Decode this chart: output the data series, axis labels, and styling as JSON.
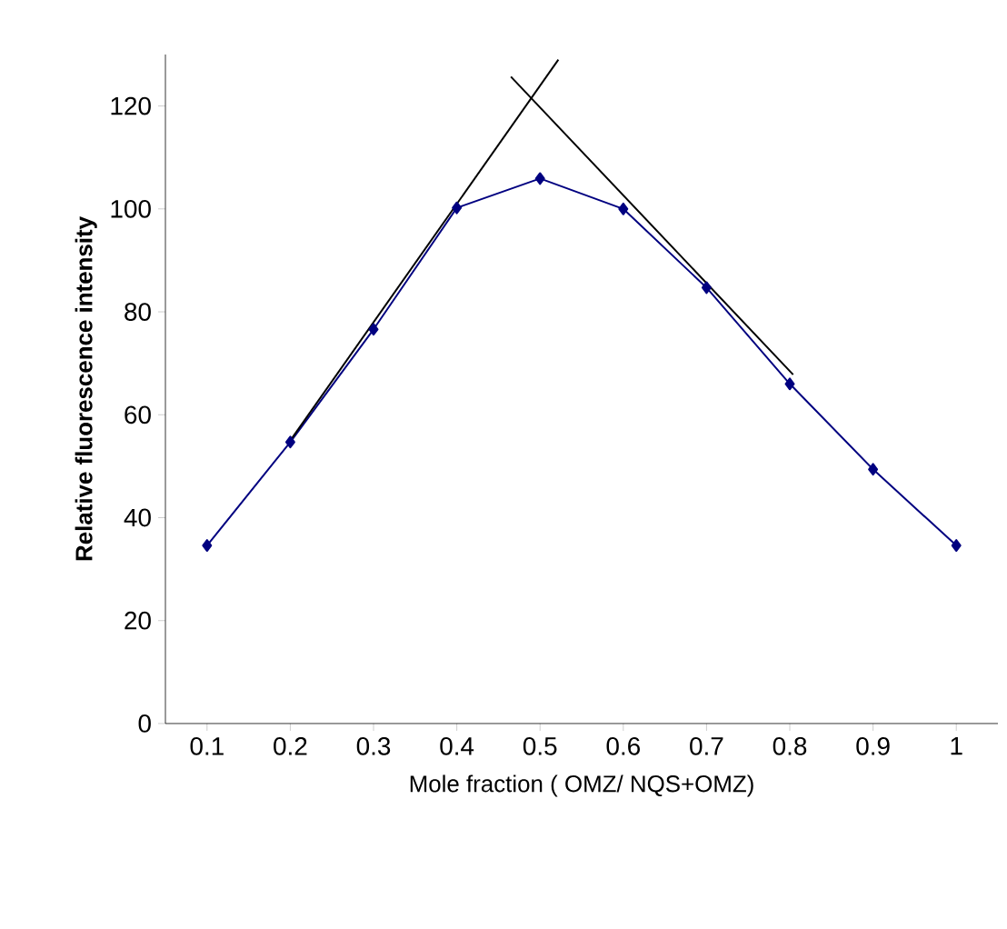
{
  "chart_data": {
    "type": "line",
    "xlabel": "Mole fraction ( OMZ/ NQS+OMZ)",
    "ylabel": "Relative fluorescence intensity",
    "xlim": [
      0.05,
      1.05
    ],
    "xticks": [
      0.1,
      0.2,
      0.3,
      0.4,
      0.5,
      0.6,
      0.7,
      0.8,
      0.9,
      1
    ],
    "ylim": [
      0,
      130
    ],
    "yticks": [
      0,
      20,
      40,
      60,
      80,
      100,
      120
    ],
    "marker": "diamond",
    "line_style": "solid",
    "series": [
      {
        "color": "#000080",
        "x": [
          0.1,
          0.2,
          0.3,
          0.4,
          0.5,
          0.6,
          0.7,
          0.8,
          0.9,
          1
        ],
        "values": [
          34.6,
          54.7,
          76.6,
          100.2,
          105.9,
          100,
          84.7,
          66,
          49.4,
          34.6
        ]
      },
      {
        "type": "line",
        "color": "#000000",
        "marker": "none",
        "x": [
          0.2,
          0.522
        ],
        "values": [
          55,
          129
        ]
      },
      {
        "type": "line",
        "color": "#000000",
        "marker": "none",
        "x": [
          0.465,
          0.804
        ],
        "values": [
          125.7,
          67.8
        ]
      }
    ]
  }
}
